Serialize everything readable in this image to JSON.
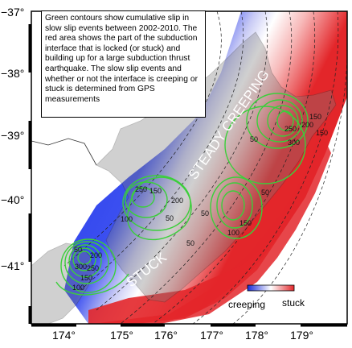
{
  "caption": "Green contours show cumulative slip in slow slip events between 2002-2010. The red area shows the part of the subduction interface that is locked (or stuck) and building up for a large subduction thrust earthquake. The slow slip events and whether or not the interface is creeping or stuck is determined from GPS measurements",
  "axes": {
    "x_ticks": [
      "174°",
      "175°",
      "176°",
      "177°",
      "178°",
      "179°"
    ],
    "y_ticks": [
      "−37°",
      "−38°",
      "−39°",
      "−40°",
      "−41°"
    ]
  },
  "regions": {
    "creeping": "STEADY CREEPING",
    "stuck": "STUCK"
  },
  "legend": {
    "creeping": "creeping",
    "stuck": "stuck"
  },
  "contours": {
    "north": [
      "50",
      "150",
      "250",
      "300",
      "200",
      "150",
      "50"
    ],
    "middle": [
      "250",
      "150",
      "100",
      "200",
      "50"
    ],
    "central": [
      "100",
      "150",
      "50",
      "50"
    ],
    "south": [
      "300",
      "250",
      "200",
      "150",
      "100",
      "50"
    ]
  },
  "colors": {
    "creeping": "#1a2bd8",
    "stuck": "#e3262a",
    "transition": "#ffffff",
    "contour": "#3bcf3b",
    "land": "#7a7a7a"
  }
}
